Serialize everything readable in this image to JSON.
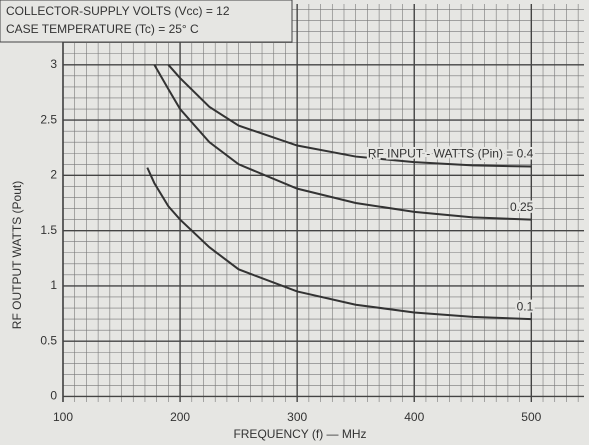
{
  "chart_data": {
    "type": "line",
    "annotations": [
      "COLLECTOR-SUPPLY VOLTS (Vcc) = 12",
      "CASE TEMPERATURE (Tc) = 25° C"
    ],
    "x_label": "FREQUENCY (f) — MHz",
    "y_label": "RF OUTPUT WATTS (Pout)",
    "x": [
      172,
      178,
      190,
      200,
      225,
      250,
      300,
      350,
      400,
      450,
      500
    ],
    "series": [
      {
        "name": "RF INPUT - WATTS (Pin) = 0.4",
        "color": "#333333",
        "values": [
          null,
          null,
          3.0,
          2.88,
          2.62,
          2.45,
          2.27,
          2.17,
          2.12,
          2.09,
          2.08
        ]
      },
      {
        "name": "0.25",
        "color": "#333333",
        "values": [
          null,
          3.0,
          2.78,
          2.6,
          2.3,
          2.1,
          1.88,
          1.75,
          1.67,
          1.62,
          1.6
        ]
      },
      {
        "name": "0.1",
        "color": "#333333",
        "values": [
          2.07,
          1.93,
          1.72,
          1.6,
          1.35,
          1.15,
          0.95,
          0.83,
          0.76,
          0.72,
          0.7
        ]
      }
    ],
    "xlim": [
      100,
      545
    ],
    "xticks": [
      100,
      200,
      300,
      400,
      500
    ],
    "ylim": [
      -0.05,
      3.55
    ],
    "yticks": [
      0,
      0.5,
      1,
      1.5,
      2,
      2.5,
      3
    ],
    "grid": true
  }
}
